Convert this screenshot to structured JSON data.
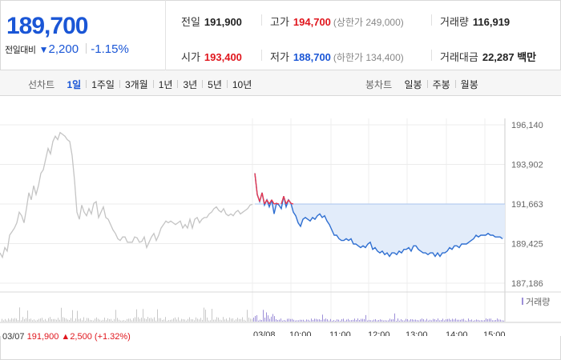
{
  "quote": {
    "price": "189,700",
    "change_label": "전일대비",
    "change_arrow": "▼",
    "change_amount": "2,200",
    "change_pct": "-1.15%",
    "prev_close": {
      "label": "전일",
      "value": "191,900"
    },
    "high": {
      "label": "고가",
      "value": "194,700",
      "limit": "(상한가 249,000)"
    },
    "volume": {
      "label": "거래량",
      "value": "116,919"
    },
    "open": {
      "label": "시가",
      "value": "193,400"
    },
    "low": {
      "label": "저가",
      "value": "188,700",
      "limit": "(하한가 134,400)"
    },
    "trade_value": {
      "label": "거래대금",
      "value": "22,287 백만"
    }
  },
  "toolbar": {
    "line_title": "선차트",
    "line_options": [
      "1일",
      "1주일",
      "3개월",
      "1년",
      "3년",
      "5년",
      "10년"
    ],
    "line_active": 0,
    "candle_title": "봉차트",
    "candle_options": [
      "일봉",
      "주봉",
      "월봉"
    ]
  },
  "bottom_info": {
    "date": "03/07",
    "close": "191,900",
    "arrow": "▲",
    "change": "2,500",
    "pct": "(+1.32%)"
  },
  "chart_data": {
    "type": "line",
    "y_tick_labels": [
      "196,140",
      "193,902",
      "191,663",
      "189,425",
      "187,186"
    ],
    "y_ticks": [
      196140,
      193902,
      191663,
      189425,
      187186
    ],
    "ylim": [
      187186,
      196140
    ],
    "prev_close_line": 191663,
    "volume_legend": "거래량",
    "x_labels": [
      "03/07",
      "03/08",
      "10:00",
      "11:00",
      "12:00",
      "13:00",
      "14:00",
      "15:00"
    ],
    "colors": {
      "prev_day": "#c4c4c4",
      "today": "#2f6fd1",
      "above": "#e8384f",
      "fill": "#e2ecfa",
      "volume": "#9d8fd8"
    },
    "series": [
      {
        "key": "prev_day",
        "x": [
          0,
          3,
          6,
          9,
          12,
          15,
          18,
          21,
          24,
          27,
          30,
          33,
          36,
          39,
          42,
          45,
          48,
          51,
          54,
          57,
          60,
          63,
          66,
          69,
          72,
          75,
          78,
          81,
          84,
          87,
          90,
          93,
          96,
          99,
          102,
          105,
          108,
          111,
          114,
          117,
          120,
          123,
          126,
          129,
          132,
          135,
          138,
          141,
          144,
          147,
          150,
          153,
          156,
          159,
          162,
          165,
          168,
          171,
          174,
          177,
          180,
          183,
          186,
          189,
          192,
          195,
          198,
          201,
          204,
          207,
          210,
          213,
          216,
          219,
          222,
          225,
          228,
          231,
          234,
          237,
          240,
          243,
          246,
          249,
          252,
          255,
          258,
          261,
          264,
          267,
          270,
          273,
          276,
          279,
          282,
          285,
          288,
          291,
          294,
          297,
          300,
          303,
          306,
          309,
          312,
          315
        ],
        "values": [
          188900,
          188650,
          189200,
          189000,
          189900,
          190100,
          190300,
          190600,
          191200,
          191000,
          190600,
          191400,
          192300,
          191900,
          192700,
          192200,
          192700,
          193400,
          193600,
          194200,
          194800,
          194500,
          195200,
          195500,
          195300,
          195700,
          195600,
          195500,
          195300,
          195200,
          194400,
          193000,
          191200,
          190800,
          191600,
          191200,
          191000,
          191400,
          191100,
          191700,
          191800,
          190900,
          191200,
          191500,
          190900,
          190800,
          190500,
          190200,
          190000,
          189700,
          189600,
          189800,
          189800,
          189500,
          189500,
          189500,
          189800,
          189750,
          189500,
          189550,
          189800,
          189200,
          189500,
          189800,
          190000,
          189600,
          189900,
          190300,
          190500,
          190700,
          190600,
          190700,
          190600,
          190500,
          190600,
          190700,
          190300,
          190500,
          190300,
          190800,
          190300,
          190800,
          190900,
          190600,
          190800,
          190900,
          190900,
          191100,
          191200,
          191400,
          191500,
          191300,
          191200,
          191400,
          191100,
          191000,
          191100,
          191000,
          191200,
          191300,
          191100,
          191200,
          191300,
          191400,
          191600,
          191650
        ]
      },
      {
        "key": "today",
        "x": [
          318,
          321,
          324,
          327,
          330,
          333,
          336,
          339,
          342,
          345,
          348,
          351,
          354,
          357,
          360,
          363,
          366,
          369,
          372,
          375,
          378,
          381,
          384,
          387,
          390,
          393,
          396,
          399,
          402,
          405,
          408,
          411,
          414,
          417,
          420,
          423,
          426,
          429,
          432,
          435,
          438,
          441,
          444,
          447,
          450,
          453,
          456,
          459,
          462,
          465,
          468,
          471,
          474,
          477,
          480,
          483,
          486,
          489,
          492,
          495,
          498,
          501,
          504,
          507,
          510,
          513,
          516,
          519,
          522,
          525,
          528,
          531,
          534,
          537,
          540,
          543,
          546,
          549,
          552,
          555,
          558,
          561,
          564,
          567,
          570,
          573,
          576,
          579,
          582,
          585,
          588,
          591,
          594,
          597,
          600,
          603,
          606,
          609,
          612,
          615,
          618,
          621,
          624,
          627
        ],
        "values": [
          193400,
          192200,
          191800,
          192300,
          191600,
          191900,
          191500,
          191900,
          191100,
          191700,
          191600,
          191400,
          192100,
          191500,
          191900,
          191700,
          191200,
          191000,
          190600,
          190400,
          190800,
          190900,
          190800,
          190700,
          190900,
          190800,
          191000,
          191100,
          190900,
          191000,
          190700,
          190500,
          190200,
          189900,
          189900,
          189700,
          189600,
          189600,
          189700,
          189600,
          189700,
          189400,
          189400,
          189300,
          189200,
          189300,
          189200,
          189400,
          189500,
          189100,
          189200,
          189000,
          188900,
          189000,
          188800,
          188900,
          188700,
          188900,
          188900,
          188800,
          189000,
          188900,
          189100,
          189100,
          189200,
          189000,
          189300,
          189300,
          189100,
          189000,
          188900,
          188900,
          188800,
          188900,
          188900,
          188700,
          188900,
          188700,
          188900,
          188900,
          189000,
          189200,
          189100,
          189300,
          189300,
          189200,
          189400,
          189400,
          189400,
          189500,
          189600,
          189700,
          189900,
          189800,
          189900,
          189900,
          189900,
          190000,
          189900,
          189900,
          189800,
          189800,
          189800,
          189700
        ]
      }
    ]
  }
}
